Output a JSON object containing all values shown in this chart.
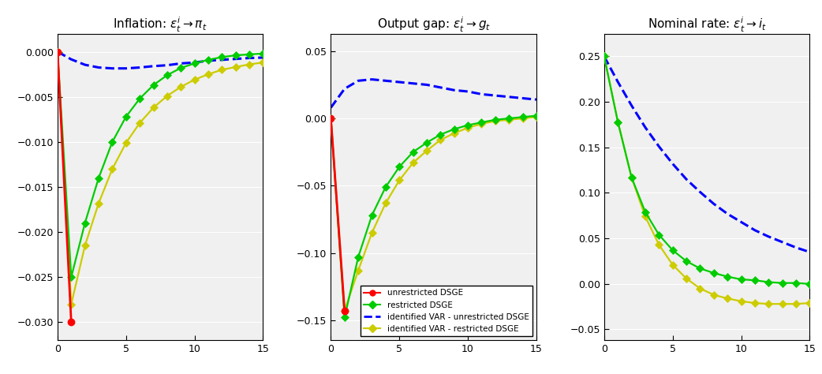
{
  "titles": [
    "Inflation: $\\epsilon^i_t \\rightarrow \\pi_t$",
    "Output gap: $\\epsilon^i_t \\rightarrow g_t$",
    "Nominal rate: $\\epsilon^i_t \\rightarrow i_t$"
  ],
  "xlim": [
    0,
    15
  ],
  "periods": 16,
  "colors": {
    "red": "#ff0000",
    "green": "#00cc00",
    "blue": "#0000ff",
    "yellow": "#cccc00"
  },
  "legend_labels": [
    "unrestricted DSGE",
    "restricted DSGE",
    "identified VAR - unrestricted DSGE",
    "identified VAR - restricted DSGE"
  ],
  "panel1": {
    "ylim": [
      -0.032,
      0.002
    ],
    "yticks": [
      0,
      -0.005,
      -0.01,
      -0.015,
      -0.02,
      -0.025,
      -0.03
    ],
    "red_x": [
      0,
      1
    ],
    "red": [
      0.0,
      -0.03
    ],
    "green": [
      0.0,
      -0.025,
      -0.019,
      -0.014,
      -0.01,
      -0.0072,
      -0.0052,
      -0.0037,
      -0.0026,
      -0.0018,
      -0.0013,
      -0.0009,
      -0.0006,
      -0.0004,
      -0.0003,
      -0.0002
    ],
    "blue": [
      0.0,
      -0.00085,
      -0.00145,
      -0.00175,
      -0.00185,
      -0.00185,
      -0.00175,
      -0.0016,
      -0.0015,
      -0.0013,
      -0.0012,
      -0.001,
      -0.0009,
      -0.0008,
      -0.0007,
      -0.00065
    ],
    "yellow": [
      0.0,
      -0.028,
      -0.0215,
      -0.0168,
      -0.013,
      -0.0101,
      -0.0079,
      -0.0062,
      -0.0049,
      -0.0039,
      -0.0031,
      -0.0025,
      -0.002,
      -0.0017,
      -0.0014,
      -0.0012
    ]
  },
  "panel2": {
    "ylim": [
      -0.165,
      0.063
    ],
    "yticks": [
      0.05,
      0,
      -0.05,
      -0.1,
      -0.15
    ],
    "red_x": [
      0,
      1
    ],
    "red": [
      0.0,
      -0.143
    ],
    "green": [
      0.0,
      -0.148,
      -0.103,
      -0.072,
      -0.051,
      -0.036,
      -0.025,
      -0.018,
      -0.012,
      -0.008,
      -0.005,
      -0.003,
      -0.001,
      0.0,
      0.001,
      0.002
    ],
    "blue": [
      0.008,
      0.022,
      0.028,
      0.029,
      0.028,
      0.027,
      0.026,
      0.025,
      0.023,
      0.021,
      0.02,
      0.018,
      0.017,
      0.016,
      0.015,
      0.014
    ],
    "yellow": [
      0.0,
      -0.143,
      -0.113,
      -0.085,
      -0.063,
      -0.046,
      -0.033,
      -0.024,
      -0.016,
      -0.011,
      -0.007,
      -0.004,
      -0.002,
      -0.001,
      0.0,
      0.001
    ]
  },
  "panel3": {
    "ylim": [
      -0.062,
      0.275
    ],
    "yticks": [
      0.25,
      0.2,
      0.15,
      0.1,
      0.05,
      0,
      -0.05
    ],
    "red_x": [],
    "red": [],
    "green": [
      0.25,
      0.178,
      0.117,
      0.079,
      0.054,
      0.037,
      0.025,
      0.017,
      0.012,
      0.008,
      0.005,
      0.004,
      0.002,
      0.001,
      0.001,
      0.0
    ],
    "blue": [
      0.25,
      0.222,
      0.196,
      0.172,
      0.151,
      0.132,
      0.115,
      0.101,
      0.088,
      0.077,
      0.068,
      0.059,
      0.052,
      0.046,
      0.04,
      0.035
    ],
    "yellow": [
      0.25,
      0.178,
      0.117,
      0.074,
      0.043,
      0.021,
      0.006,
      -0.005,
      -0.012,
      -0.016,
      -0.019,
      -0.021,
      -0.022,
      -0.022,
      -0.022,
      -0.021
    ]
  }
}
